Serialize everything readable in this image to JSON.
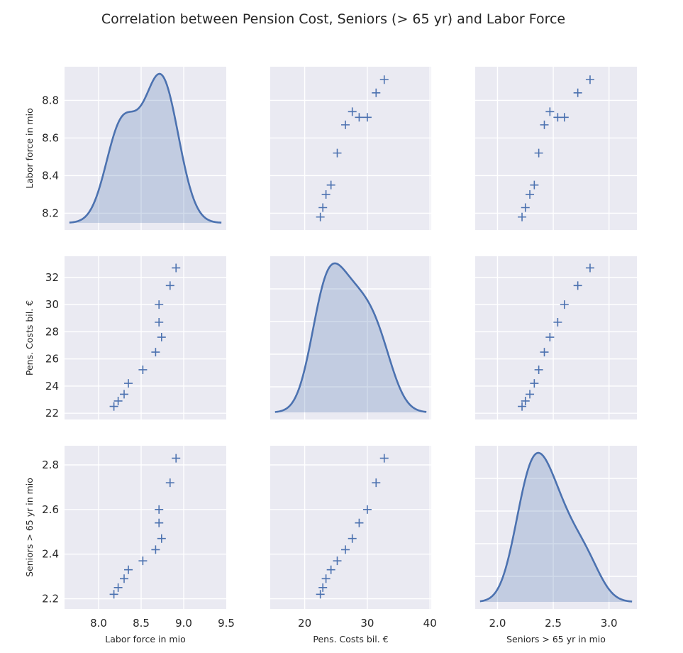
{
  "chart_data": {
    "type": "scatter",
    "subtype": "pairplot",
    "title": "Correlation between Pension Cost, Seniors (> 65 yr) and Labor Force",
    "marker": "+",
    "diagonal": "kde",
    "grid": true,
    "color": "#4c72b0",
    "background": "#eaeaf2",
    "variables": [
      {
        "key": "labor",
        "label": "Labor force in mio",
        "range": [
          7.6,
          9.5
        ],
        "ticks": [
          8.2,
          8.4,
          8.6,
          8.8
        ],
        "diag_ticks": [
          8.0,
          8.5,
          9.0,
          9.5
        ],
        "tick_labels": [
          "8.2",
          "8.4",
          "8.6",
          "8.8"
        ],
        "diag_tick_labels": [
          "8.0",
          "8.5",
          "9.0",
          "9.5"
        ],
        "scatter_range": [
          8.13,
          8.96
        ]
      },
      {
        "key": "pension",
        "label": "Pens. Costs bil. €",
        "range": [
          14.5,
          40.2
        ],
        "ticks": [
          22,
          24,
          26,
          28,
          30,
          32
        ],
        "diag_ticks": [
          20,
          30,
          40
        ],
        "tick_labels": [
          "22",
          "24",
          "26",
          "28",
          "30",
          "32"
        ],
        "diag_tick_labels": [
          "20",
          "30",
          "40"
        ],
        "scatter_range": [
          21.8,
          33.3
        ]
      },
      {
        "key": "seniors",
        "label": "Seniors > 65 yr in mio",
        "range": [
          1.8,
          3.25
        ],
        "ticks": [
          2.2,
          2.4,
          2.6,
          2.8
        ],
        "diag_ticks": [
          2.0,
          2.5,
          3.0
        ],
        "tick_labels": [
          "2.2",
          "2.4",
          "2.6",
          "2.8"
        ],
        "diag_tick_labels": [
          "2.0",
          "2.5",
          "3.0"
        ],
        "scatter_range": [
          2.17,
          2.87
        ]
      }
    ],
    "points": [
      {
        "labor": 8.18,
        "pension": 22.5,
        "seniors": 2.22
      },
      {
        "labor": 8.23,
        "pension": 22.9,
        "seniors": 2.25
      },
      {
        "labor": 8.3,
        "pension": 23.4,
        "seniors": 2.29
      },
      {
        "labor": 8.35,
        "pension": 24.2,
        "seniors": 2.33
      },
      {
        "labor": 8.52,
        "pension": 25.2,
        "seniors": 2.37
      },
      {
        "labor": 8.67,
        "pension": 26.5,
        "seniors": 2.42
      },
      {
        "labor": 8.74,
        "pension": 27.6,
        "seniors": 2.47
      },
      {
        "labor": 8.71,
        "pension": 28.7,
        "seniors": 2.54
      },
      {
        "labor": 8.71,
        "pension": 30.0,
        "seniors": 2.6
      },
      {
        "labor": 8.84,
        "pension": 31.4,
        "seniors": 2.72
      },
      {
        "labor": 8.91,
        "pension": 32.7,
        "seniors": 2.83
      }
    ]
  }
}
